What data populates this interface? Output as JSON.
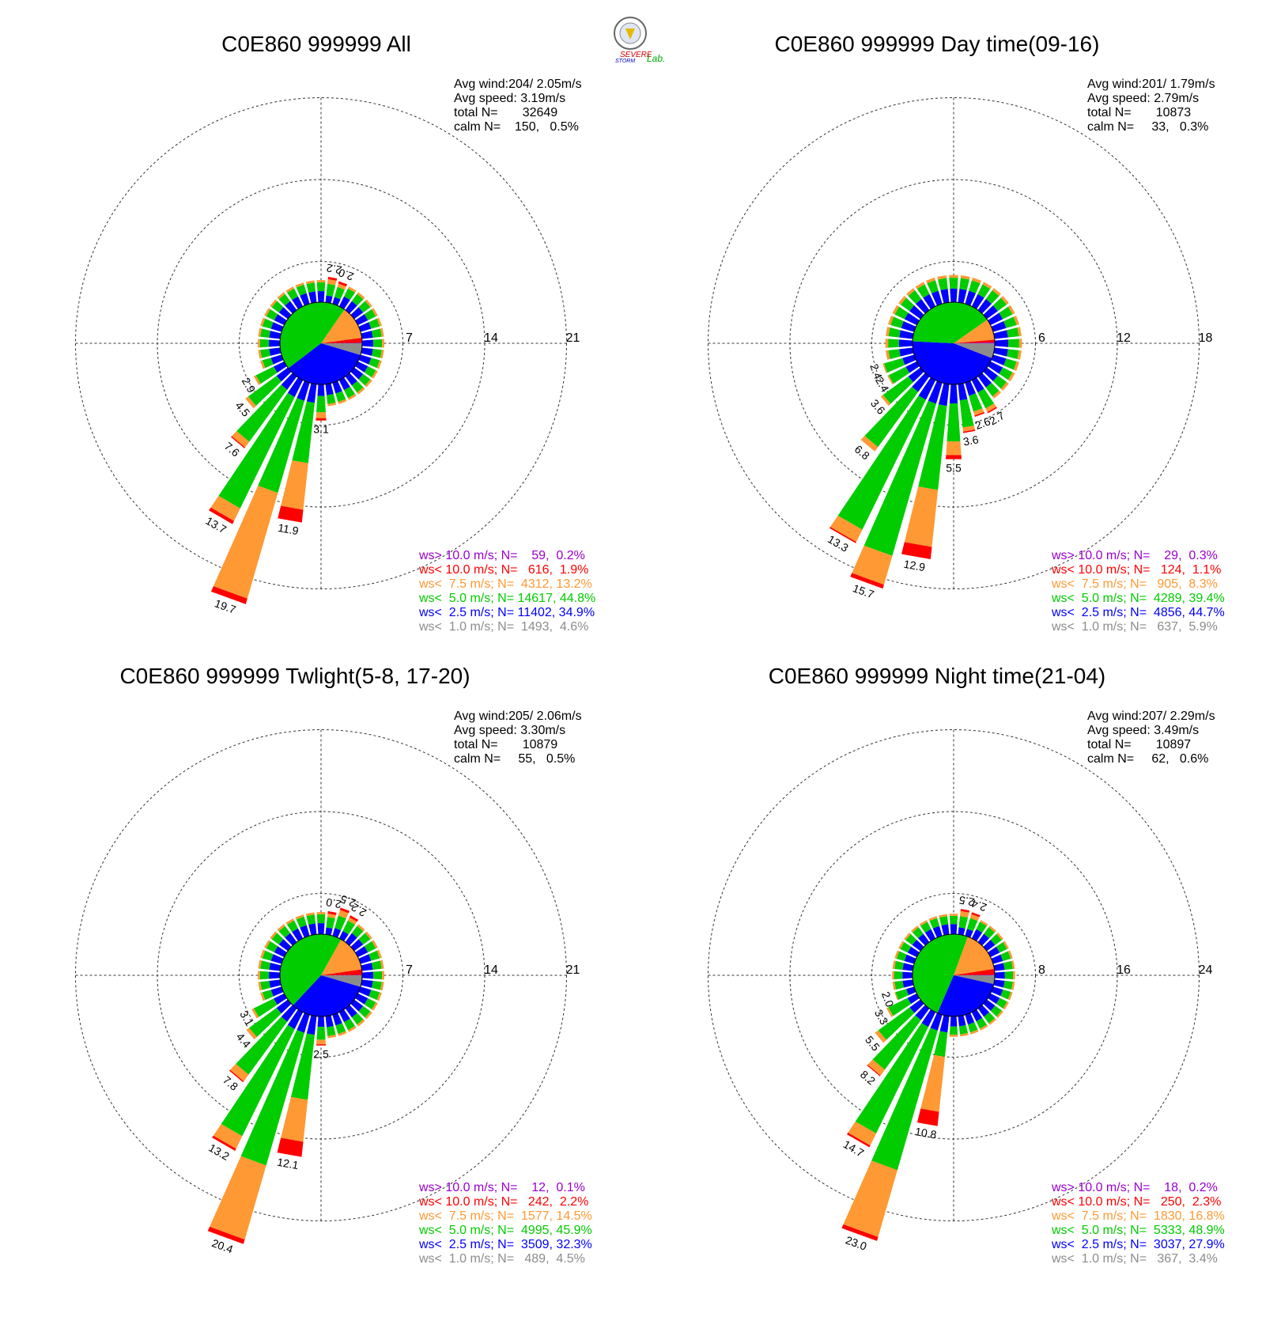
{
  "logo": {
    "text_severe": "SEVERE",
    "text_storm": "STORM",
    "text_lab": "Lab."
  },
  "speed_colors": {
    "calm_lt_1": "#8c8c8c",
    "lt_2_5": "#0000ff",
    "lt_5_0": "#00cc00",
    "lt_7_5": "#ff9933",
    "lt_10_0": "#ff0000",
    "gt_10_0": "#9900cc"
  },
  "chart_data": [
    {
      "type": "wind-rose",
      "title": "C0E860 999999 All",
      "stats": [
        "Avg wind:204/ 2.05m/s",
        "Avg speed: 3.19m/s",
        "total N=       32649",
        "calm N=    150,   0.5%"
      ],
      "ring_labels": [
        "7",
        "14",
        "21"
      ],
      "rmax": 21,
      "legend": [
        {
          "text": "ws> 10.0 m/s; N=    59,  0.2%",
          "color": "#9900cc"
        },
        {
          "text": "ws< 10.0 m/s; N=   616,  1.9%",
          "color": "#ff0000"
        },
        {
          "text": "ws<  7.5 m/s; N=  4312, 13.2%",
          "color": "#ff9933"
        },
        {
          "text": "ws<  5.0 m/s; N= 14617, 44.8%",
          "color": "#00cc00"
        },
        {
          "text": "ws<  2.5 m/s; N= 11402, 34.9%",
          "color": "#0000ff"
        },
        {
          "text": "ws<  1.0 m/s; N=  1493,  4.6%",
          "color": "#8c8c8c"
        }
      ],
      "center_pie": [
        4.6,
        34.9,
        44.8,
        13.2,
        1.9,
        0.2
      ],
      "labeled_bars": [
        {
          "dir": 10,
          "total": 2.2,
          "parts": [
            0.6,
            1.0,
            0.4,
            0.2
          ],
          "label": "2.2"
        },
        {
          "dir": 20,
          "total": 2.0,
          "parts": [
            0.6,
            0.9,
            0.3,
            0.2
          ],
          "label": "2.0"
        },
        {
          "dir": 180,
          "total": 3.1,
          "parts": [
            1.0,
            1.4,
            0.5,
            0.2
          ],
          "label": "3.1"
        },
        {
          "dir": 190,
          "total": 11.9,
          "parts": [
            1.6,
            5.2,
            4.0,
            1.1
          ],
          "label": "11.9"
        },
        {
          "dir": 200,
          "total": 19.7,
          "parts": [
            1.6,
            8.2,
            9.4,
            0.5
          ],
          "label": "19.7"
        },
        {
          "dir": 210,
          "total": 13.7,
          "parts": [
            1.6,
            10.6,
            1.2,
            0.3
          ],
          "label": "13.7"
        },
        {
          "dir": 220,
          "total": 7.6,
          "parts": [
            1.4,
            5.5,
            0.6,
            0.1
          ],
          "label": "7.6"
        },
        {
          "dir": 230,
          "total": 4.5,
          "parts": [
            1.2,
            3.0,
            0.3
          ],
          "label": "4.5"
        },
        {
          "dir": 240,
          "total": 2.9,
          "parts": [
            1.0,
            1.7,
            0.2
          ],
          "label": "2.9"
        }
      ],
      "small_bar_length": 1.9
    },
    {
      "type": "wind-rose",
      "title": "C0E860 999999 Day time(09-16)",
      "stats": [
        "Avg wind:201/ 1.79m/s",
        "Avg speed: 2.79m/s",
        "total N=       10873",
        "calm N=     33,   0.3%"
      ],
      "ring_labels": [
        "6",
        "12",
        "18"
      ],
      "rmax": 18,
      "legend": [
        {
          "text": "ws> 10.0 m/s; N=    29,  0.3%",
          "color": "#9900cc"
        },
        {
          "text": "ws< 10.0 m/s; N=   124,  1.1%",
          "color": "#ff0000"
        },
        {
          "text": "ws<  7.5 m/s; N=   905,  8.3%",
          "color": "#ff9933"
        },
        {
          "text": "ws<  5.0 m/s; N=  4289, 39.4%",
          "color": "#00cc00"
        },
        {
          "text": "ws<  2.5 m/s; N=  4856, 44.7%",
          "color": "#0000ff"
        },
        {
          "text": "ws<  1.0 m/s; N=   637,  5.9%",
          "color": "#8c8c8c"
        }
      ],
      "center_pie": [
        5.9,
        44.7,
        39.4,
        8.3,
        1.1,
        0.3
      ],
      "labeled_bars": [
        {
          "dir": 150,
          "total": 2.7,
          "parts": [
            1.0,
            1.3,
            0.3,
            0.1
          ],
          "label": "2.7"
        },
        {
          "dir": 160,
          "total": 2.6,
          "parts": [
            1.0,
            1.2,
            0.3,
            0.1
          ],
          "label": "2.6"
        },
        {
          "dir": 170,
          "total": 3.6,
          "parts": [
            1.2,
            2.0,
            0.3,
            0.1
          ],
          "label": "3.6"
        },
        {
          "dir": 180,
          "total": 5.5,
          "parts": [
            1.4,
            2.8,
            1.0,
            0.3
          ],
          "label": "5.5"
        },
        {
          "dir": 190,
          "total": 12.9,
          "parts": [
            1.6,
            6.2,
            4.2,
            0.9
          ],
          "label": "12.9"
        },
        {
          "dir": 200,
          "total": 15.7,
          "parts": [
            1.6,
            11.6,
            2.2,
            0.3
          ],
          "label": "15.7"
        },
        {
          "dir": 210,
          "total": 13.3,
          "parts": [
            1.6,
            10.6,
            1.0,
            0.1
          ],
          "label": "13.3"
        },
        {
          "dir": 220,
          "total": 6.8,
          "parts": [
            1.4,
            5.0,
            0.4
          ],
          "label": "6.8"
        },
        {
          "dir": 230,
          "total": 3.6,
          "parts": [
            1.1,
            2.3,
            0.2
          ],
          "label": "3.6"
        },
        {
          "dir": 240,
          "total": 2.4,
          "parts": [
            0.9,
            1.4,
            0.1
          ],
          "label": "2.4"
        },
        {
          "dir": 250,
          "total": 2.4,
          "parts": [
            0.9,
            1.4,
            0.1
          ],
          "label": "2.4"
        }
      ],
      "small_bar_length": 2.0
    },
    {
      "type": "wind-rose",
      "title": "C0E860 999999 Twlight(5-8, 17-20)",
      "stats": [
        "Avg wind:205/ 2.06m/s",
        "Avg speed: 3.30m/s",
        "total N=       10879",
        "calm N=     55,   0.5%"
      ],
      "ring_labels": [
        "7",
        "14",
        "21"
      ],
      "rmax": 21,
      "legend": [
        {
          "text": "ws> 10.0 m/s; N=    12,  0.1%",
          "color": "#9900cc"
        },
        {
          "text": "ws< 10.0 m/s; N=   242,  2.2%",
          "color": "#ff0000"
        },
        {
          "text": "ws<  7.5 m/s; N=  1577, 14.5%",
          "color": "#ff9933"
        },
        {
          "text": "ws<  5.0 m/s; N=  4995, 45.9%",
          "color": "#00cc00"
        },
        {
          "text": "ws<  2.5 m/s; N=  3509, 32.3%",
          "color": "#0000ff"
        },
        {
          "text": "ws<  1.0 m/s; N=   489,  4.5%",
          "color": "#8c8c8c"
        }
      ],
      "center_pie": [
        4.5,
        32.3,
        45.9,
        14.5,
        2.2,
        0.1
      ],
      "labeled_bars": [
        {
          "dir": 10,
          "total": 2.0,
          "parts": [
            0.6,
            0.9,
            0.3,
            0.2
          ],
          "label": "2.0"
        },
        {
          "dir": 20,
          "total": 2.5,
          "parts": [
            0.7,
            1.1,
            0.5,
            0.2
          ],
          "label": "2.5"
        },
        {
          "dir": 30,
          "total": 2.2,
          "parts": [
            0.7,
            1.0,
            0.3,
            0.2
          ],
          "label": "2.2"
        },
        {
          "dir": 180,
          "total": 2.5,
          "parts": [
            0.9,
            1.1,
            0.4,
            0.1
          ],
          "label": "2.5"
        },
        {
          "dir": 190,
          "total": 12.1,
          "parts": [
            1.6,
            5.6,
            3.6,
            1.3
          ],
          "label": "12.1"
        },
        {
          "dir": 200,
          "total": 20.4,
          "parts": [
            1.6,
            11.8,
            6.6,
            0.4
          ],
          "label": "20.4"
        },
        {
          "dir": 210,
          "total": 13.2,
          "parts": [
            1.6,
            10.2,
            1.2,
            0.2
          ],
          "label": "13.2"
        },
        {
          "dir": 220,
          "total": 7.8,
          "parts": [
            1.4,
            5.6,
            0.7,
            0.1
          ],
          "label": "7.8"
        },
        {
          "dir": 230,
          "total": 4.4,
          "parts": [
            1.2,
            2.9,
            0.3
          ],
          "label": "4.4"
        },
        {
          "dir": 240,
          "total": 3.1,
          "parts": [
            1.0,
            1.9,
            0.2
          ],
          "label": "3.1"
        }
      ],
      "small_bar_length": 1.9
    },
    {
      "type": "wind-rose",
      "title": "C0E860 999999 Night time(21-04)",
      "stats": [
        "Avg wind:207/ 2.29m/s",
        "Avg speed: 3.49m/s",
        "total N=       10897",
        "calm N=     62,   0.6%"
      ],
      "ring_labels": [
        "8",
        "16",
        "24"
      ],
      "rmax": 24,
      "legend": [
        {
          "text": "ws> 10.0 m/s; N=    18,  0.2%",
          "color": "#9900cc"
        },
        {
          "text": "ws< 10.0 m/s; N=   250,  2.3%",
          "color": "#ff0000"
        },
        {
          "text": "ws<  7.5 m/s; N=  1830, 16.8%",
          "color": "#ff9933"
        },
        {
          "text": "ws<  5.0 m/s; N=  5333, 48.9%",
          "color": "#00cc00"
        },
        {
          "text": "ws<  2.5 m/s; N=  3037, 27.9%",
          "color": "#0000ff"
        },
        {
          "text": "ws<  1.0 m/s; N=   367,  3.4%",
          "color": "#8c8c8c"
        }
      ],
      "center_pie": [
        3.4,
        27.9,
        48.9,
        16.8,
        2.3,
        0.2
      ],
      "labeled_bars": [
        {
          "dir": 10,
          "total": 2.5,
          "parts": [
            0.7,
            1.1,
            0.5,
            0.2
          ],
          "label": "2.5"
        },
        {
          "dir": 20,
          "total": 2.4,
          "parts": [
            0.7,
            1.1,
            0.4,
            0.2
          ],
          "label": "2.4"
        },
        {
          "dir": 190,
          "total": 10.8,
          "parts": [
            1.6,
            2.4,
            5.4,
            1.4
          ],
          "label": "10.8"
        },
        {
          "dir": 200,
          "total": 23.0,
          "parts": [
            1.6,
            14.2,
            6.8,
            0.4
          ],
          "label": "23.0"
        },
        {
          "dir": 210,
          "total": 14.7,
          "parts": [
            1.6,
            11.6,
            1.3,
            0.2
          ],
          "label": "14.7"
        },
        {
          "dir": 220,
          "total": 8.2,
          "parts": [
            1.4,
            6.0,
            0.7,
            0.1
          ],
          "label": "8.2"
        },
        {
          "dir": 230,
          "total": 5.5,
          "parts": [
            1.3,
            3.8,
            0.4
          ],
          "label": "5.5"
        },
        {
          "dir": 240,
          "total": 3.3,
          "parts": [
            1.0,
            2.1,
            0.2
          ],
          "label": "3.3"
        },
        {
          "dir": 250,
          "total": 2.0,
          "parts": [
            0.8,
            1.1,
            0.1
          ],
          "label": "2.0"
        }
      ],
      "small_bar_length": 2.0
    }
  ]
}
